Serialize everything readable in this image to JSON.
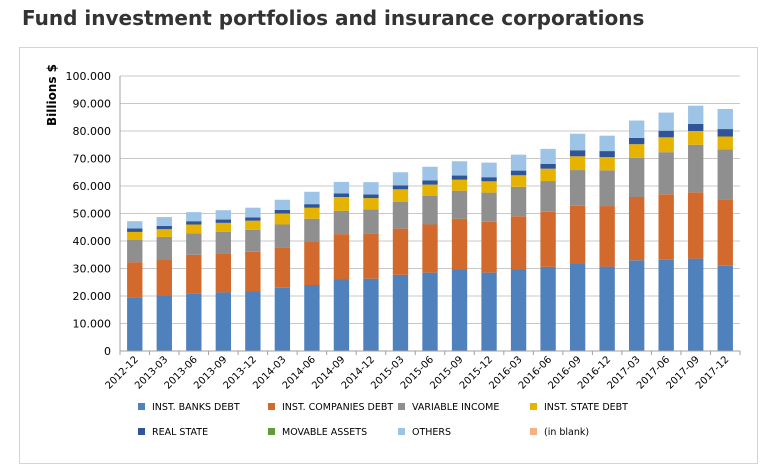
{
  "page": {
    "title": "Fund investment portfolios and insurance corporations"
  },
  "colors": {
    "INST. BANKS DEBT": "#4f81bd",
    "INST. COMPANIES DEBT": "#d2692d",
    "VARIABLE INCOME": "#8f8f8f",
    "INST. STATE DEBT": "#e6b400",
    "REAL STATE": "#2f5597",
    "MOVABLE ASSETS": "#5d9e3a",
    "OTHERS": "#9dc3e6",
    "(in blank)": "#f4b183"
  },
  "chart_data": {
    "type": "bar",
    "stacked": true,
    "title": "",
    "xlabel": "",
    "ylabel": "Billions $",
    "ylim": [
      0,
      100
    ],
    "yticks": [
      "0",
      "10.000",
      "20.000",
      "30.000",
      "40.000",
      "50.000",
      "60.000",
      "70.000",
      "80.000",
      "90.000",
      "100.000"
    ],
    "grid": true,
    "legend_position": "bottom",
    "categories": [
      "2012-12",
      "2013-03",
      "2013-06",
      "2013-09",
      "2013-12",
      "2014-03",
      "2014-06",
      "2014-09",
      "2014-12",
      "2015-03",
      "2015-06",
      "2015-09",
      "2015-12",
      "2016-03",
      "2016-06",
      "2016-09",
      "2016-12",
      "2017-03",
      "2017-06",
      "2017-09",
      "2017-12"
    ],
    "series": [
      {
        "name": "INST. BANKS DEBT",
        "values": [
          19.5,
          20.0,
          21.0,
          21.3,
          21.8,
          23.0,
          24.0,
          26.0,
          26.3,
          27.7,
          28.5,
          29.8,
          28.5,
          29.8,
          30.6,
          31.8,
          30.7,
          33.0,
          33.2,
          33.6,
          31.0
        ]
      },
      {
        "name": "INST. COMPANIES DEBT",
        "values": [
          12.8,
          13.3,
          14.0,
          14.2,
          14.3,
          14.7,
          15.8,
          16.5,
          16.5,
          16.8,
          17.5,
          18.3,
          18.5,
          19.2,
          20.0,
          21.0,
          22.0,
          23.0,
          23.8,
          24.1,
          24.2
        ]
      },
      {
        "name": "VARIABLE INCOME",
        "values": [
          8.2,
          8.2,
          7.8,
          7.8,
          8.0,
          8.3,
          8.3,
          8.5,
          8.7,
          9.8,
          10.5,
          10.2,
          10.6,
          10.7,
          11.2,
          13.0,
          13.0,
          14.2,
          15.3,
          17.3,
          18.1
        ]
      },
      {
        "name": "INST. STATE DEBT",
        "values": [
          2.8,
          2.8,
          3.2,
          3.3,
          3.3,
          4.0,
          4.0,
          5.0,
          4.1,
          4.5,
          4.0,
          4.0,
          4.1,
          4.2,
          4.5,
          5.0,
          4.8,
          5.0,
          5.4,
          5.0,
          4.7
        ]
      },
      {
        "name": "REAL STATE",
        "values": [
          1.3,
          1.2,
          1.2,
          1.2,
          1.2,
          1.3,
          1.3,
          1.3,
          1.3,
          1.4,
          1.5,
          1.5,
          1.5,
          1.7,
          1.7,
          2.2,
          2.2,
          2.3,
          2.4,
          2.6,
          2.7
        ]
      },
      {
        "name": "MOVABLE ASSETS",
        "values": [
          0,
          0,
          0,
          0,
          0,
          0,
          0,
          0,
          0,
          0,
          0,
          0,
          0,
          0,
          0,
          0,
          0,
          0,
          0,
          0,
          0
        ]
      },
      {
        "name": "OTHERS",
        "values": [
          2.6,
          3.2,
          3.3,
          3.4,
          3.5,
          3.7,
          4.5,
          4.2,
          4.5,
          4.8,
          5.0,
          5.2,
          5.3,
          5.8,
          5.5,
          6.0,
          5.6,
          6.3,
          6.6,
          6.6,
          7.3
        ]
      },
      {
        "name": "(in blank)",
        "values": [
          0,
          0,
          0,
          0,
          0,
          0,
          0,
          0,
          0,
          0,
          0,
          0,
          0,
          0,
          0,
          0,
          0,
          0,
          0,
          0,
          0
        ]
      }
    ]
  }
}
